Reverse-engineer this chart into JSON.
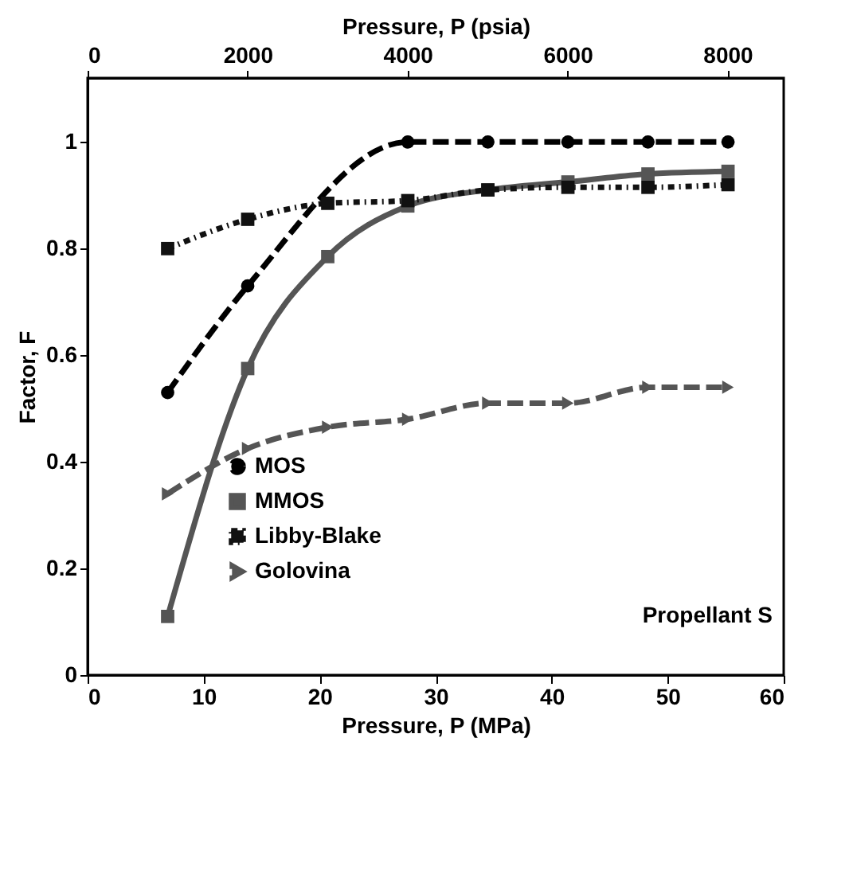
{
  "chart_data": {
    "type": "line",
    "xlabel": "Pressure, P (MPa)",
    "ylabel": "Factor, F",
    "x2label": "Pressure, P (psia)",
    "xlim": [
      0,
      60
    ],
    "xticks": [
      0,
      10,
      20,
      30,
      40,
      50,
      60
    ],
    "x2lim": [
      0,
      8702
    ],
    "x2ticks": [
      0,
      2000,
      4000,
      6000,
      8000
    ],
    "ylim": [
      0,
      1.12
    ],
    "yticks": [
      0,
      0.2,
      0.4,
      0.6,
      0.8,
      1
    ],
    "grid": false,
    "legend": "bottom left",
    "annotations": [
      "Propellant S"
    ],
    "series": [
      {
        "name": "MOS",
        "color": "#000000",
        "marker": "circle",
        "line_style": "dashed",
        "x": [
          6.9,
          13.8,
          27.6,
          34.5,
          41.4,
          48.3,
          55.2
        ],
        "values": [
          0.53,
          0.73,
          1.0,
          1.0,
          1.0,
          1.0,
          1.0
        ]
      },
      {
        "name": "MMOS",
        "color": "#555555",
        "marker": "square",
        "line_style": "solid",
        "x": [
          6.9,
          13.8,
          20.7,
          27.6,
          34.5,
          41.4,
          48.3,
          55.2
        ],
        "values": [
          0.11,
          0.575,
          0.785,
          0.88,
          0.91,
          0.925,
          0.94,
          0.945
        ]
      },
      {
        "name": "Libby-Blake",
        "color": "#111111",
        "marker": "square",
        "line_style": "dotted",
        "x": [
          6.9,
          13.8,
          20.7,
          27.6,
          34.5,
          41.4,
          48.3,
          55.2
        ],
        "values": [
          0.8,
          0.855,
          0.885,
          0.89,
          0.91,
          0.915,
          0.915,
          0.92
        ]
      },
      {
        "name": "Golovina",
        "color": "#555555",
        "marker": "triangle",
        "line_style": "dashed",
        "x": [
          6.9,
          13.8,
          20.7,
          27.6,
          34.5,
          41.4,
          48.3,
          55.2
        ],
        "values": [
          0.34,
          0.425,
          0.465,
          0.48,
          0.51,
          0.51,
          0.54,
          0.54
        ]
      }
    ]
  }
}
